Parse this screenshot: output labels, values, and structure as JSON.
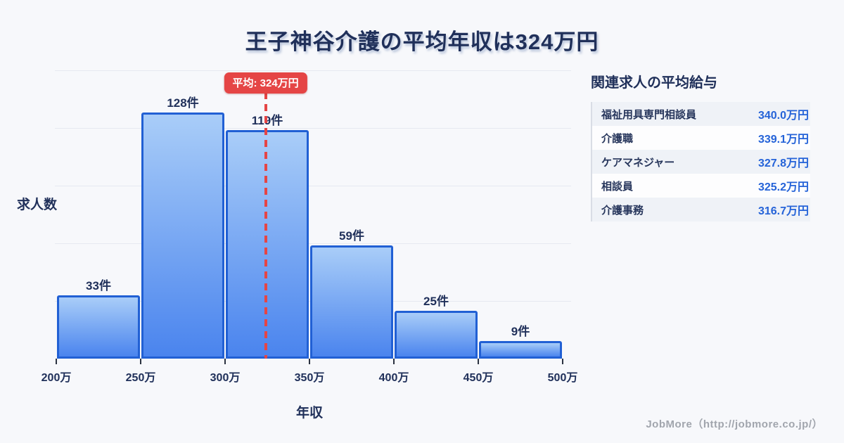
{
  "title": "王子神谷介護の平均年収は324万円",
  "chart_data": {
    "type": "bar",
    "subtype": "histogram",
    "title": "王子神谷介護の平均年収は324万円",
    "xlabel": "年収",
    "ylabel": "求人数",
    "bin_edges": [
      200,
      250,
      300,
      350,
      400,
      450,
      500
    ],
    "bin_edge_labels": [
      "200万",
      "250万",
      "300万",
      "350万",
      "400万",
      "450万",
      "500万"
    ],
    "values": [
      33,
      128,
      119,
      59,
      25,
      9
    ],
    "bar_count_labels": [
      "33件",
      "128件",
      "119件",
      "59件",
      "25件",
      "9件"
    ],
    "average": 324,
    "average_label": "平均: 324万円",
    "x_range": [
      200,
      500
    ],
    "ylim": [
      0,
      150
    ],
    "grid": "horizontal",
    "gridline_count": 5,
    "legend": "none"
  },
  "related": {
    "title": "関連求人の平均給与",
    "rows": [
      {
        "label": "福祉用具専門相談員",
        "value": "340.0万円"
      },
      {
        "label": "介護職",
        "value": "339.1万円"
      },
      {
        "label": "ケアマネジャー",
        "value": "327.8万円"
      },
      {
        "label": "相談員",
        "value": "325.2万円"
      },
      {
        "label": "介護事務",
        "value": "316.7万円"
      }
    ]
  },
  "footer": {
    "credit": "JobMore（http://jobmore.co.jp/）"
  },
  "colors": {
    "background": "#f7f8fb",
    "heading_navy": "#20305a",
    "bar_gradient_top": "#a9cdf8",
    "bar_gradient_bottom": "#4a84ee",
    "bar_border": "#2160d4",
    "average_red": "#e54545",
    "value_blue": "#2563d8"
  }
}
